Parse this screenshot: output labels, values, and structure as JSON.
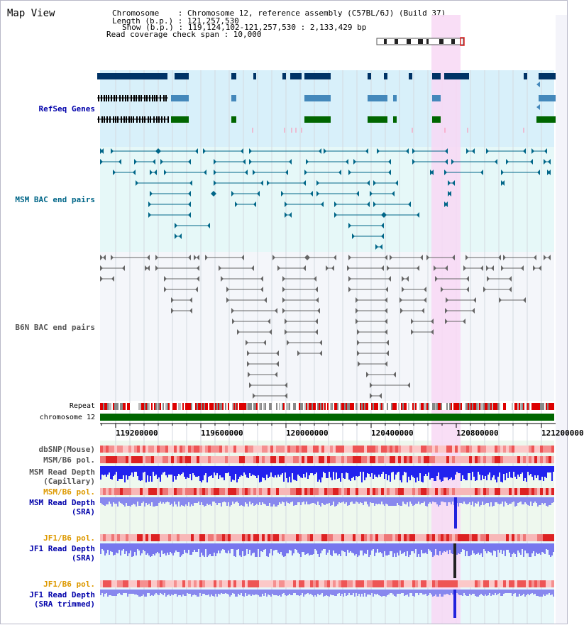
{
  "header": {
    "title": "Map View",
    "chromosome_line": "Chromosome    : Chromosome 12, reference assembly (C57BL/6J) (Build 37)",
    "length_line": "Length (b.p.) : 121,257,530",
    "show_line": "Show (b.p.) : 119,124,102-121,257,530 : 2,133,429 bp",
    "span_line": "Read coverage check span : 10,000"
  },
  "tracks": {
    "refseq": {
      "label": "RefSeq Genes",
      "color": "#0000aa"
    },
    "msm_bac": {
      "label": "MSM BAC end pairs",
      "color": "#006688"
    },
    "b6n_bac": {
      "label": "B6N BAC end pairs",
      "color": "#555555"
    },
    "repeat": {
      "label": "Repeat"
    },
    "chrom": {
      "label": "chromosome 12"
    },
    "dbsnp": {
      "label": "dbSNP(Mouse)"
    },
    "msm_b6_pol_1": {
      "label": "MSM/B6 pol."
    },
    "msm_depth_cap": {
      "label": "MSM Read Depth\n(Capillary)"
    },
    "msm_b6_pol_2": {
      "label": "MSM/B6 pol.",
      "color": "#dd9900"
    },
    "msm_depth_sra": {
      "label": "MSM Read Depth\n(SRA)",
      "color": "#0000aa"
    },
    "jf1_b6_pol_1": {
      "label": "JF1/B6 pol.",
      "color": "#dd9900"
    },
    "jf1_depth_sra": {
      "label": "JF1 Read Depth\n(SRA)",
      "color": "#0000aa"
    },
    "jf1_b6_pol_2": {
      "label": "JF1/B6 pol.",
      "color": "#dd9900"
    },
    "jf1_depth_trim": {
      "label": "JF1 Read Depth\n(SRA trimmed)",
      "color": "#0000aa"
    }
  },
  "axis": {
    "ticks": [
      "119200000",
      "119600000",
      "120000000",
      "120400000",
      "120800000",
      "121200000"
    ]
  },
  "colors": {
    "highlight": "#f8d8f4",
    "refseq_bg": "#d8f0fa",
    "msm_bg": "#e6f8f8",
    "b6n_bg": "#f4f6fa",
    "gene_dark": "#003366",
    "gene_mid": "#4488bb",
    "gene_green": "#006600",
    "chrom_green": "#006600"
  }
}
